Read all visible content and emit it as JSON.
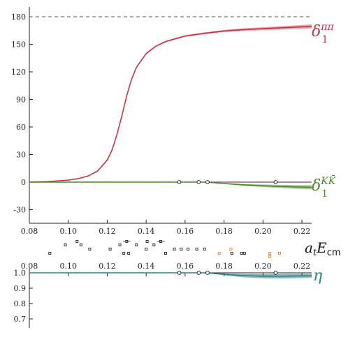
{
  "chart_data": [
    {
      "type": "line",
      "panel": "phase shifts",
      "xlim": [
        0.08,
        0.225
      ],
      "ylim": [
        -40,
        180
      ],
      "xticks": [
        0.08,
        0.1,
        0.12,
        0.14,
        0.16,
        0.18,
        0.2,
        0.22
      ],
      "xtick_labels": [
        "0.08",
        "0.10",
        "0.12",
        "0.14",
        "0.16",
        "0.18",
        "0.20",
        "0.22"
      ],
      "yticks": [
        -30,
        0,
        30,
        60,
        90,
        120,
        150,
        180
      ],
      "ytick_labels": [
        "-30",
        "0",
        "30",
        "60",
        "90",
        "120",
        "150",
        "180"
      ],
      "reference_line": {
        "y": 180,
        "style": "dashed",
        "color": "#555555"
      },
      "series": [
        {
          "label_base": "δ",
          "label_sub": "1",
          "label_sup": "ππ",
          "color": "#cc3340",
          "x": [
            0.08,
            0.09,
            0.1,
            0.105,
            0.11,
            0.115,
            0.12,
            0.1225,
            0.125,
            0.1275,
            0.13,
            0.1325,
            0.135,
            0.14,
            0.145,
            0.15,
            0.16,
            0.17,
            0.18,
            0.19,
            0.2,
            0.21,
            0.22,
            0.225
          ],
          "y": [
            0,
            0.6,
            2.2,
            3.8,
            6.5,
            12,
            24,
            35,
            52,
            72,
            94,
            112,
            125,
            140,
            148,
            153,
            159,
            162,
            164.5,
            166,
            167,
            168,
            169,
            169.5
          ],
          "band_halfwidth": [
            0,
            0,
            0.2,
            0.3,
            0.4,
            0.5,
            0.6,
            0.7,
            0.8,
            0.8,
            0.8,
            0.8,
            0.8,
            0.8,
            0.8,
            0.8,
            0.9,
            1.0,
            1.2,
            1.4,
            1.6,
            1.8,
            2.0,
            2.2
          ]
        },
        {
          "label_base": "δ",
          "label_sub": "1",
          "label_sup": "KK̄",
          "color": "#4a8a2a",
          "x": [
            0.08,
            0.171,
            0.18,
            0.19,
            0.2,
            0.21,
            0.22,
            0.225
          ],
          "y": [
            0,
            0,
            -1.5,
            -3.0,
            -4.0,
            -4.8,
            -5.4,
            -5.6
          ],
          "band_halfwidth": [
            0,
            0,
            0.5,
            1.0,
            1.4,
            1.8,
            2.2,
            2.4
          ]
        }
      ],
      "markers": [
        {
          "x": 0.157,
          "y": 0
        },
        {
          "x": 0.167,
          "y": 0
        },
        {
          "x": 0.1715,
          "y": 0
        },
        {
          "x": 0.2065,
          "y": 0
        }
      ],
      "threshold_line": {
        "x_from": 0.1715,
        "x_to": 0.225,
        "y": 0,
        "color": "#7a4a6a"
      }
    },
    {
      "type": "scatter",
      "panel": "energy levels",
      "xlim": [
        0.08,
        0.225
      ],
      "axis_label_base": "a",
      "axis_label_sub": "t",
      "axis_label_E": "E",
      "axis_label_Esub": "cm",
      "levels": [
        {
          "x": 0.0905,
          "row": 0,
          "c": "#333333"
        },
        {
          "x": 0.0985,
          "row": 2,
          "c": "#333333"
        },
        {
          "x": 0.1045,
          "row": 3,
          "c": "#333333"
        },
        {
          "x": 0.1065,
          "row": 2,
          "c": "#333333"
        },
        {
          "x": 0.111,
          "row": 1,
          "c": "#333333"
        },
        {
          "x": 0.1215,
          "row": 1,
          "c": "#333333"
        },
        {
          "x": 0.1265,
          "row": 2,
          "c": "#333333"
        },
        {
          "x": 0.1285,
          "row": 0,
          "c": "#333333"
        },
        {
          "x": 0.13,
          "row": 3,
          "c": "#333333",
          "err": 0.002
        },
        {
          "x": 0.131,
          "row": 0,
          "c": "#333333"
        },
        {
          "x": 0.135,
          "row": 2,
          "c": "#333333"
        },
        {
          "x": 0.14,
          "row": 1,
          "c": "#333333"
        },
        {
          "x": 0.1405,
          "row": 3,
          "c": "#333333"
        },
        {
          "x": 0.144,
          "row": 2,
          "c": "#333333"
        },
        {
          "x": 0.1475,
          "row": 3,
          "c": "#333333",
          "err": 0.002
        },
        {
          "x": 0.15,
          "row": 0,
          "c": "#333333"
        },
        {
          "x": 0.1545,
          "row": 1,
          "c": "#333333"
        },
        {
          "x": 0.158,
          "row": 1,
          "c": "#333333"
        },
        {
          "x": 0.1615,
          "row": 1,
          "c": "#333333"
        },
        {
          "x": 0.166,
          "row": 1,
          "c": "#333333"
        },
        {
          "x": 0.17,
          "row": 1,
          "c": "#333333"
        },
        {
          "x": 0.1775,
          "row": 0,
          "c": "#e8913a"
        },
        {
          "x": 0.1835,
          "row": 1,
          "c": "#e8913a"
        },
        {
          "x": 0.184,
          "row": 0,
          "c": "#333333"
        },
        {
          "x": 0.189,
          "row": 0,
          "c": "#333333"
        },
        {
          "x": 0.1905,
          "row": 0,
          "c": "#333333"
        },
        {
          "x": 0.2035,
          "row": 0,
          "c": "#e8913a"
        },
        {
          "x": 0.2035,
          "row": -1,
          "c": "#e8913a"
        },
        {
          "x": 0.2085,
          "row": 0,
          "c": "#e8913a"
        }
      ]
    },
    {
      "type": "line",
      "panel": "inelasticity",
      "xlim": [
        0.08,
        0.225
      ],
      "ylim": [
        0.6,
        1.0
      ],
      "xticks": [
        0.08,
        0.1,
        0.12,
        0.14,
        0.16,
        0.18,
        0.2,
        0.22
      ],
      "xtick_labels": [
        "0.08",
        "0.10",
        "0.12",
        "0.14",
        "0.16",
        "0.18",
        "0.20",
        "0.22"
      ],
      "yticks": [
        0.7,
        0.8,
        0.9,
        1.0
      ],
      "ytick_labels": [
        "0.7",
        "0.8",
        "0.9",
        "1.0"
      ],
      "series": [
        {
          "label_base": "η",
          "color": "#2e7f86",
          "x": [
            0.08,
            0.171,
            0.18,
            0.19,
            0.2,
            0.21,
            0.22,
            0.225
          ],
          "y": [
            1.0,
            1.0,
            0.99,
            0.982,
            0.978,
            0.978,
            0.98,
            0.981
          ],
          "band_halfwidth": [
            0,
            0,
            0.006,
            0.011,
            0.014,
            0.015,
            0.014,
            0.013
          ]
        }
      ],
      "markers": [
        {
          "x": 0.157,
          "y": 1.0
        },
        {
          "x": 0.167,
          "y": 1.0
        },
        {
          "x": 0.1715,
          "y": 1.0
        },
        {
          "x": 0.2065,
          "y": 1.0
        }
      ]
    }
  ]
}
